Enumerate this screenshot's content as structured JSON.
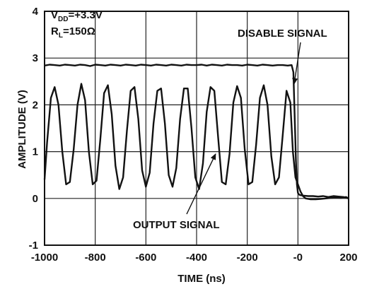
{
  "chart_data": {
    "type": "line",
    "xlabel": "TIME (ns)",
    "ylabel": "AMPLITUDE (V)",
    "xlim": [
      -1000,
      200
    ],
    "ylim": [
      -1,
      4
    ],
    "grid": true,
    "x_ticks": [
      -1000,
      -800,
      -600,
      -400,
      -200,
      0,
      200
    ],
    "x_tick_labels": [
      "-1000",
      "-800",
      "-600",
      "-400",
      "-200",
      "-0",
      "200"
    ],
    "y_ticks": [
      -1,
      0,
      1,
      2,
      3,
      4
    ],
    "y_tick_labels": [
      "-1",
      "0",
      "1",
      "2",
      "3",
      "4"
    ],
    "conditions": {
      "vdd": {
        "main": "V",
        "sub": "DD",
        "rest": "=+3.3V"
      },
      "rl": {
        "main": "R",
        "sub": "L",
        "rest": "=150Ω"
      }
    },
    "annotations": [
      {
        "text": "DISABLE SIGNAL",
        "points_to": {
          "x": -15,
          "y": 2.45
        }
      },
      {
        "text": "OUTPUT SIGNAL",
        "points_to": {
          "x": -325,
          "y": 0.95
        }
      }
    ],
    "series": [
      {
        "name": "DISABLE SIGNAL",
        "x": [
          -1000,
          -980,
          -960,
          -940,
          -920,
          -900,
          -880,
          -860,
          -840,
          -820,
          -800,
          -780,
          -760,
          -740,
          -720,
          -700,
          -680,
          -660,
          -640,
          -620,
          -600,
          -580,
          -560,
          -540,
          -520,
          -500,
          -480,
          -460,
          -440,
          -420,
          -400,
          -380,
          -360,
          -340,
          -320,
          -300,
          -280,
          -260,
          -240,
          -220,
          -200,
          -180,
          -160,
          -140,
          -120,
          -100,
          -80,
          -60,
          -40,
          -25,
          -18,
          -12,
          -8,
          -4,
          0,
          5,
          10,
          20,
          40,
          60,
          80,
          100,
          120,
          140,
          160,
          180,
          200
        ],
        "values": [
          2.84,
          2.86,
          2.85,
          2.84,
          2.86,
          2.85,
          2.84,
          2.86,
          2.85,
          2.83,
          2.86,
          2.85,
          2.84,
          2.86,
          2.85,
          2.84,
          2.86,
          2.85,
          2.84,
          2.86,
          2.85,
          2.84,
          2.86,
          2.85,
          2.84,
          2.86,
          2.85,
          2.84,
          2.86,
          2.85,
          2.85,
          2.86,
          2.84,
          2.86,
          2.85,
          2.84,
          2.86,
          2.85,
          2.85,
          2.84,
          2.86,
          2.85,
          2.84,
          2.86,
          2.85,
          2.84,
          2.85,
          2.85,
          2.84,
          2.85,
          2.7,
          1.6,
          0.8,
          0.3,
          0.12,
          0.08,
          0.07,
          0.06,
          0.05,
          0.05,
          0.04,
          0.05,
          0.03,
          0.05,
          0.04,
          0.03,
          0.0
        ]
      },
      {
        "name": "OUTPUT SIGNAL",
        "x": [
          -1000,
          -990,
          -975,
          -960,
          -945,
          -930,
          -915,
          -900,
          -885,
          -870,
          -855,
          -840,
          -825,
          -810,
          -795,
          -780,
          -765,
          -750,
          -735,
          -720,
          -705,
          -690,
          -675,
          -660,
          -645,
          -630,
          -615,
          -600,
          -585,
          -570,
          -555,
          -540,
          -525,
          -510,
          -495,
          -480,
          -465,
          -450,
          -435,
          -420,
          -405,
          -390,
          -375,
          -360,
          -345,
          -330,
          -315,
          -300,
          -285,
          -270,
          -255,
          -240,
          -225,
          -210,
          -195,
          -180,
          -165,
          -150,
          -135,
          -120,
          -105,
          -90,
          -75,
          -60,
          -45,
          -30,
          -20,
          -10,
          0,
          10,
          20,
          30,
          50,
          70,
          90,
          110,
          130,
          150,
          170,
          190,
          200
        ],
        "values": [
          0.4,
          1.2,
          2.15,
          2.38,
          2.0,
          1.0,
          0.3,
          0.35,
          1.05,
          2.0,
          2.45,
          2.1,
          1.0,
          0.3,
          0.38,
          1.25,
          2.25,
          2.42,
          1.8,
          0.7,
          0.2,
          0.45,
          1.45,
          2.3,
          2.38,
          1.7,
          0.6,
          0.25,
          0.55,
          1.6,
          2.3,
          2.35,
          1.6,
          0.5,
          0.25,
          0.65,
          1.7,
          2.35,
          2.35,
          1.5,
          0.45,
          0.2,
          0.75,
          1.85,
          2.38,
          2.3,
          1.3,
          0.35,
          0.3,
          0.95,
          2.05,
          2.4,
          2.15,
          1.05,
          0.3,
          0.35,
          1.15,
          2.15,
          2.42,
          2.0,
          0.9,
          0.3,
          0.45,
          1.35,
          2.3,
          2.05,
          1.0,
          0.45,
          0.3,
          0.15,
          0.05,
          0.0,
          -0.02,
          -0.02,
          -0.01,
          0.0,
          0.01,
          0.02,
          0.01,
          0.03,
          0.0
        ]
      }
    ]
  }
}
